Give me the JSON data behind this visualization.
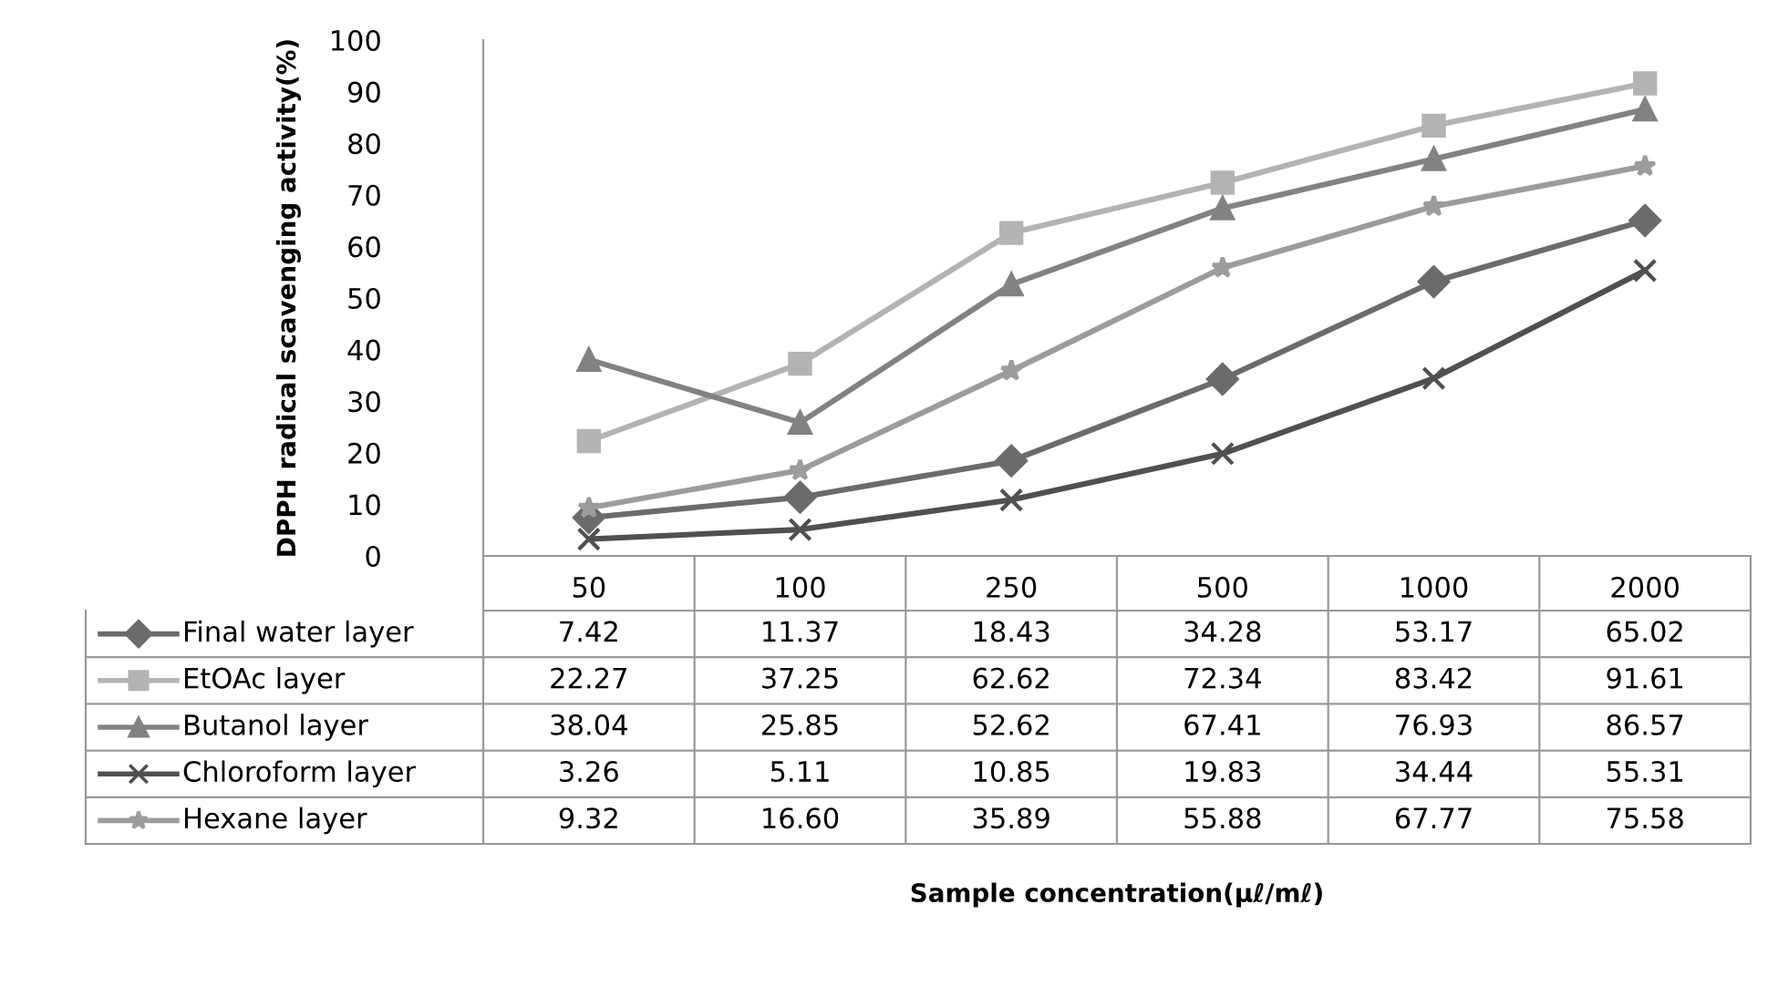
{
  "chart_data": {
    "type": "line",
    "ylabel": "DPPH radical scavenging activity(%)",
    "annotations": [
      "Sample concentration(μℓ/mℓ)"
    ],
    "categories": [
      "50",
      "100",
      "250",
      "500",
      "1000",
      "2000"
    ],
    "ylim": [
      0,
      100
    ],
    "yticks": [
      0,
      10,
      20,
      30,
      40,
      50,
      60,
      70,
      80,
      90,
      100
    ],
    "grid": false,
    "legend": "bottom",
    "line_style": "solid",
    "series": [
      {
        "name": "Final water layer",
        "color": "#6b6b6b",
        "marker": "diamond",
        "values": [
          7.42,
          11.37,
          18.43,
          34.28,
          53.17,
          65.02
        ],
        "value_labels": [
          "7.42",
          "11.37",
          "18.43",
          "34.28",
          "53.17",
          "65.02"
        ]
      },
      {
        "name": "EtOAc layer",
        "color": "#b3b3b3",
        "marker": "square",
        "values": [
          22.27,
          37.25,
          62.62,
          72.34,
          83.42,
          91.61
        ],
        "value_labels": [
          "22.27",
          "37.25",
          "62.62",
          "72.34",
          "83.42",
          "91.61"
        ]
      },
      {
        "name": "Butanol layer",
        "color": "#828282",
        "marker": "triangle",
        "values": [
          38.04,
          25.85,
          52.62,
          67.41,
          76.93,
          86.57
        ],
        "value_labels": [
          "38.04",
          "25.85",
          "52.62",
          "67.41",
          "76.93",
          "86.57"
        ]
      },
      {
        "name": "Chloroform layer",
        "color": "#505050",
        "marker": "cross",
        "values": [
          3.26,
          5.11,
          10.85,
          19.83,
          34.44,
          55.31
        ],
        "value_labels": [
          "3.26",
          "5.11",
          "10.85",
          "19.83",
          "34.44",
          "55.31"
        ]
      },
      {
        "name": "Hexane layer",
        "color": "#9c9c9c",
        "marker": "star",
        "values": [
          9.32,
          16.6,
          35.89,
          55.88,
          67.77,
          75.58
        ],
        "value_labels": [
          "9.32",
          "16.60",
          "35.89",
          "55.88",
          "67.77",
          "75.58"
        ]
      }
    ]
  }
}
